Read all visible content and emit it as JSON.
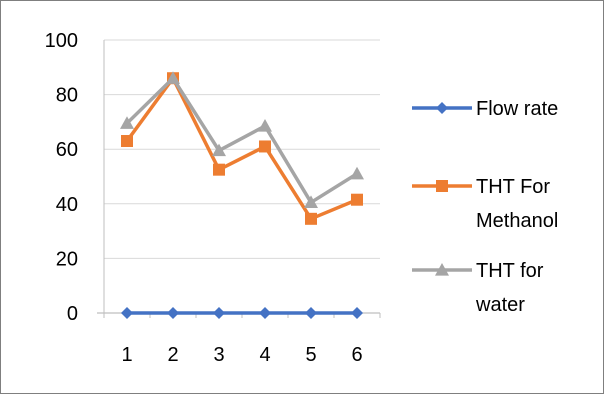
{
  "chart_data": {
    "type": "line",
    "x": [
      1,
      2,
      3,
      4,
      5,
      6
    ],
    "x_tick_labels": [
      "1",
      "2",
      "3",
      "4",
      "5",
      "6"
    ],
    "y_tick_labels": [
      "0",
      "20",
      "40",
      "60",
      "80",
      "100"
    ],
    "ylim": [
      0,
      100
    ],
    "grid": true,
    "legend_position": "right",
    "series": [
      {
        "name": "Flow rate",
        "color": "#4472C4",
        "marker": "diamond",
        "values": [
          0,
          0,
          0,
          0,
          0,
          0
        ]
      },
      {
        "name": "THT For Methanol",
        "name_lines": [
          "THT For",
          "Methanol"
        ],
        "color": "#ED7D31",
        "marker": "square",
        "values": [
          63,
          86,
          52.5,
          61,
          34.5,
          41.5
        ]
      },
      {
        "name": "THT for water",
        "name_lines": [
          "THT for",
          "water"
        ],
        "color": "#A5A5A5",
        "marker": "triangle",
        "values": [
          69.5,
          86,
          59.5,
          68.5,
          40.5,
          51
        ]
      }
    ]
  }
}
